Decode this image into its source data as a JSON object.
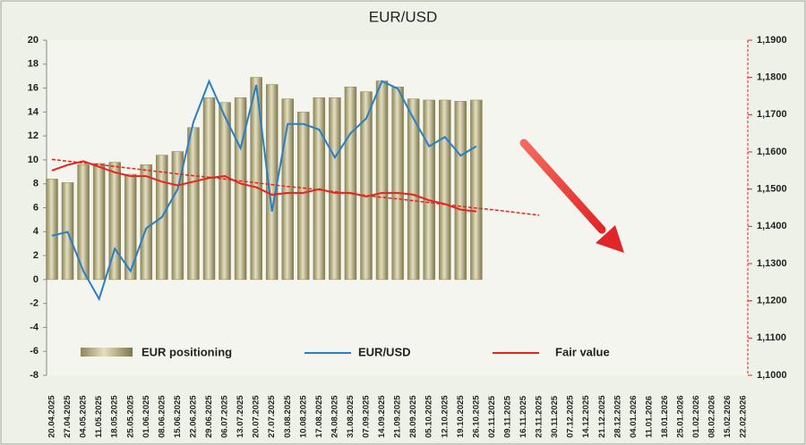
{
  "chart_data": {
    "type": "bar",
    "title": "EUR/USD",
    "categories": [
      "20.04.2025",
      "27.04.2025",
      "04.05.2025",
      "11.05.2025",
      "18.05.2025",
      "25.05.2025",
      "01.06.2025",
      "08.06.2025",
      "15.06.2025",
      "22.06.2025",
      "29.06.2025",
      "06.07.2025",
      "13.07.2025",
      "20.07.2025",
      "27.07.2025",
      "03.08.2025",
      "10.08.2025",
      "17.08.2025",
      "24.08.2025",
      "31.08.2025",
      "07.09.2025",
      "14.09.2025",
      "21.09.2025",
      "28.09.2025",
      "05.10.2025",
      "12.10.2025",
      "19.10.2025",
      "26.10.2025",
      "02.11.2025",
      "09.11.2025",
      "16.11.2025",
      "23.11.2025",
      "30.11.2025",
      "07.12.2025",
      "14.12.2025",
      "21.12.2025",
      "28.12.2025",
      "04.01.2026",
      "11.01.2026",
      "18.01.2026",
      "25.01.2026",
      "01.02.2026",
      "08.02.2026",
      "15.02.2026",
      "22.02.2026"
    ],
    "series": [
      {
        "name": "EUR positioning",
        "type": "bar",
        "axis": "y",
        "color": "#b5ad80",
        "values": [
          8.4,
          8.1,
          9.6,
          9.7,
          9.8,
          8.8,
          9.6,
          10.4,
          10.7,
          12.7,
          15.2,
          14.8,
          15.2,
          16.9,
          16.3,
          15.1,
          14.0,
          15.2,
          15.2,
          16.1,
          15.7,
          16.6,
          16.1,
          15.1,
          15.0,
          15.0,
          14.9,
          15.0,
          null,
          null,
          null,
          null,
          null,
          null,
          null,
          null,
          null,
          null,
          null,
          null,
          null,
          null,
          null,
          null,
          null
        ]
      },
      {
        "name": "EUR/USD",
        "type": "line",
        "axis": "y2",
        "color": "#2a7fc4",
        "values": [
          1.1375,
          1.1385,
          1.128,
          1.1205,
          1.134,
          1.128,
          1.1395,
          1.1425,
          1.15,
          1.168,
          1.179,
          1.1695,
          1.161,
          1.178,
          1.144,
          1.1675,
          1.1675,
          1.166,
          1.1585,
          1.165,
          1.169,
          1.179,
          1.177,
          1.169,
          1.1615,
          1.164,
          1.159,
          1.1615,
          null,
          null,
          null,
          null,
          null,
          null,
          null,
          null,
          null,
          null,
          null,
          null,
          null,
          null,
          null,
          null,
          null
        ]
      },
      {
        "name": "Fair value",
        "type": "line",
        "axis": "y2",
        "color": "#e8231c",
        "values": [
          1.155,
          1.1565,
          1.1575,
          1.156,
          1.1545,
          1.1535,
          1.1535,
          1.152,
          1.151,
          1.152,
          1.153,
          1.1535,
          1.1515,
          1.1505,
          1.1485,
          1.149,
          1.149,
          1.15,
          1.149,
          1.149,
          1.148,
          1.149,
          1.149,
          1.1485,
          1.147,
          1.146,
          1.1445,
          1.144,
          null,
          null,
          null,
          null,
          null,
          null,
          null,
          null,
          null,
          null,
          null,
          null,
          null,
          null,
          null,
          null,
          null
        ]
      },
      {
        "type": "line",
        "axis": "y2",
        "color": "#e8231c",
        "dashed": true,
        "values": [
          1.158,
          1.1575,
          1.157,
          1.1566,
          1.1561,
          1.1556,
          1.1551,
          1.1546,
          1.1541,
          1.1536,
          1.1532,
          1.1527,
          1.1522,
          1.1517,
          1.1512,
          1.1507,
          1.1503,
          1.1498,
          1.1493,
          1.1488,
          1.1483,
          1.1478,
          1.1474,
          1.1469,
          1.1464,
          1.1459,
          1.1454,
          1.1449,
          1.1445,
          1.144,
          1.1435,
          1.143,
          null,
          null,
          null,
          null,
          null,
          null,
          null,
          null,
          null,
          null,
          null,
          null,
          null
        ]
      }
    ],
    "ylim": [
      -8,
      20
    ],
    "yticks": [
      -8,
      -6,
      -4,
      -2,
      0,
      2,
      4,
      6,
      8,
      10,
      12,
      14,
      16,
      18,
      20
    ],
    "y2lim": [
      1.1,
      1.19
    ],
    "y2ticks": [
      {
        "value": 1.1,
        "label": "1,1000"
      },
      {
        "value": 1.11,
        "label": "1,1100"
      },
      {
        "value": 1.12,
        "label": "1,1200"
      },
      {
        "value": 1.13,
        "label": "1,1300"
      },
      {
        "value": 1.14,
        "label": "1,1400"
      },
      {
        "value": 1.15,
        "label": "1,1500"
      },
      {
        "value": 1.16,
        "label": "1,1600"
      },
      {
        "value": 1.17,
        "label": "1,1700"
      },
      {
        "value": 1.18,
        "label": "1,1800"
      },
      {
        "value": 1.19,
        "label": "1,1900"
      }
    ],
    "grid": false
  }
}
